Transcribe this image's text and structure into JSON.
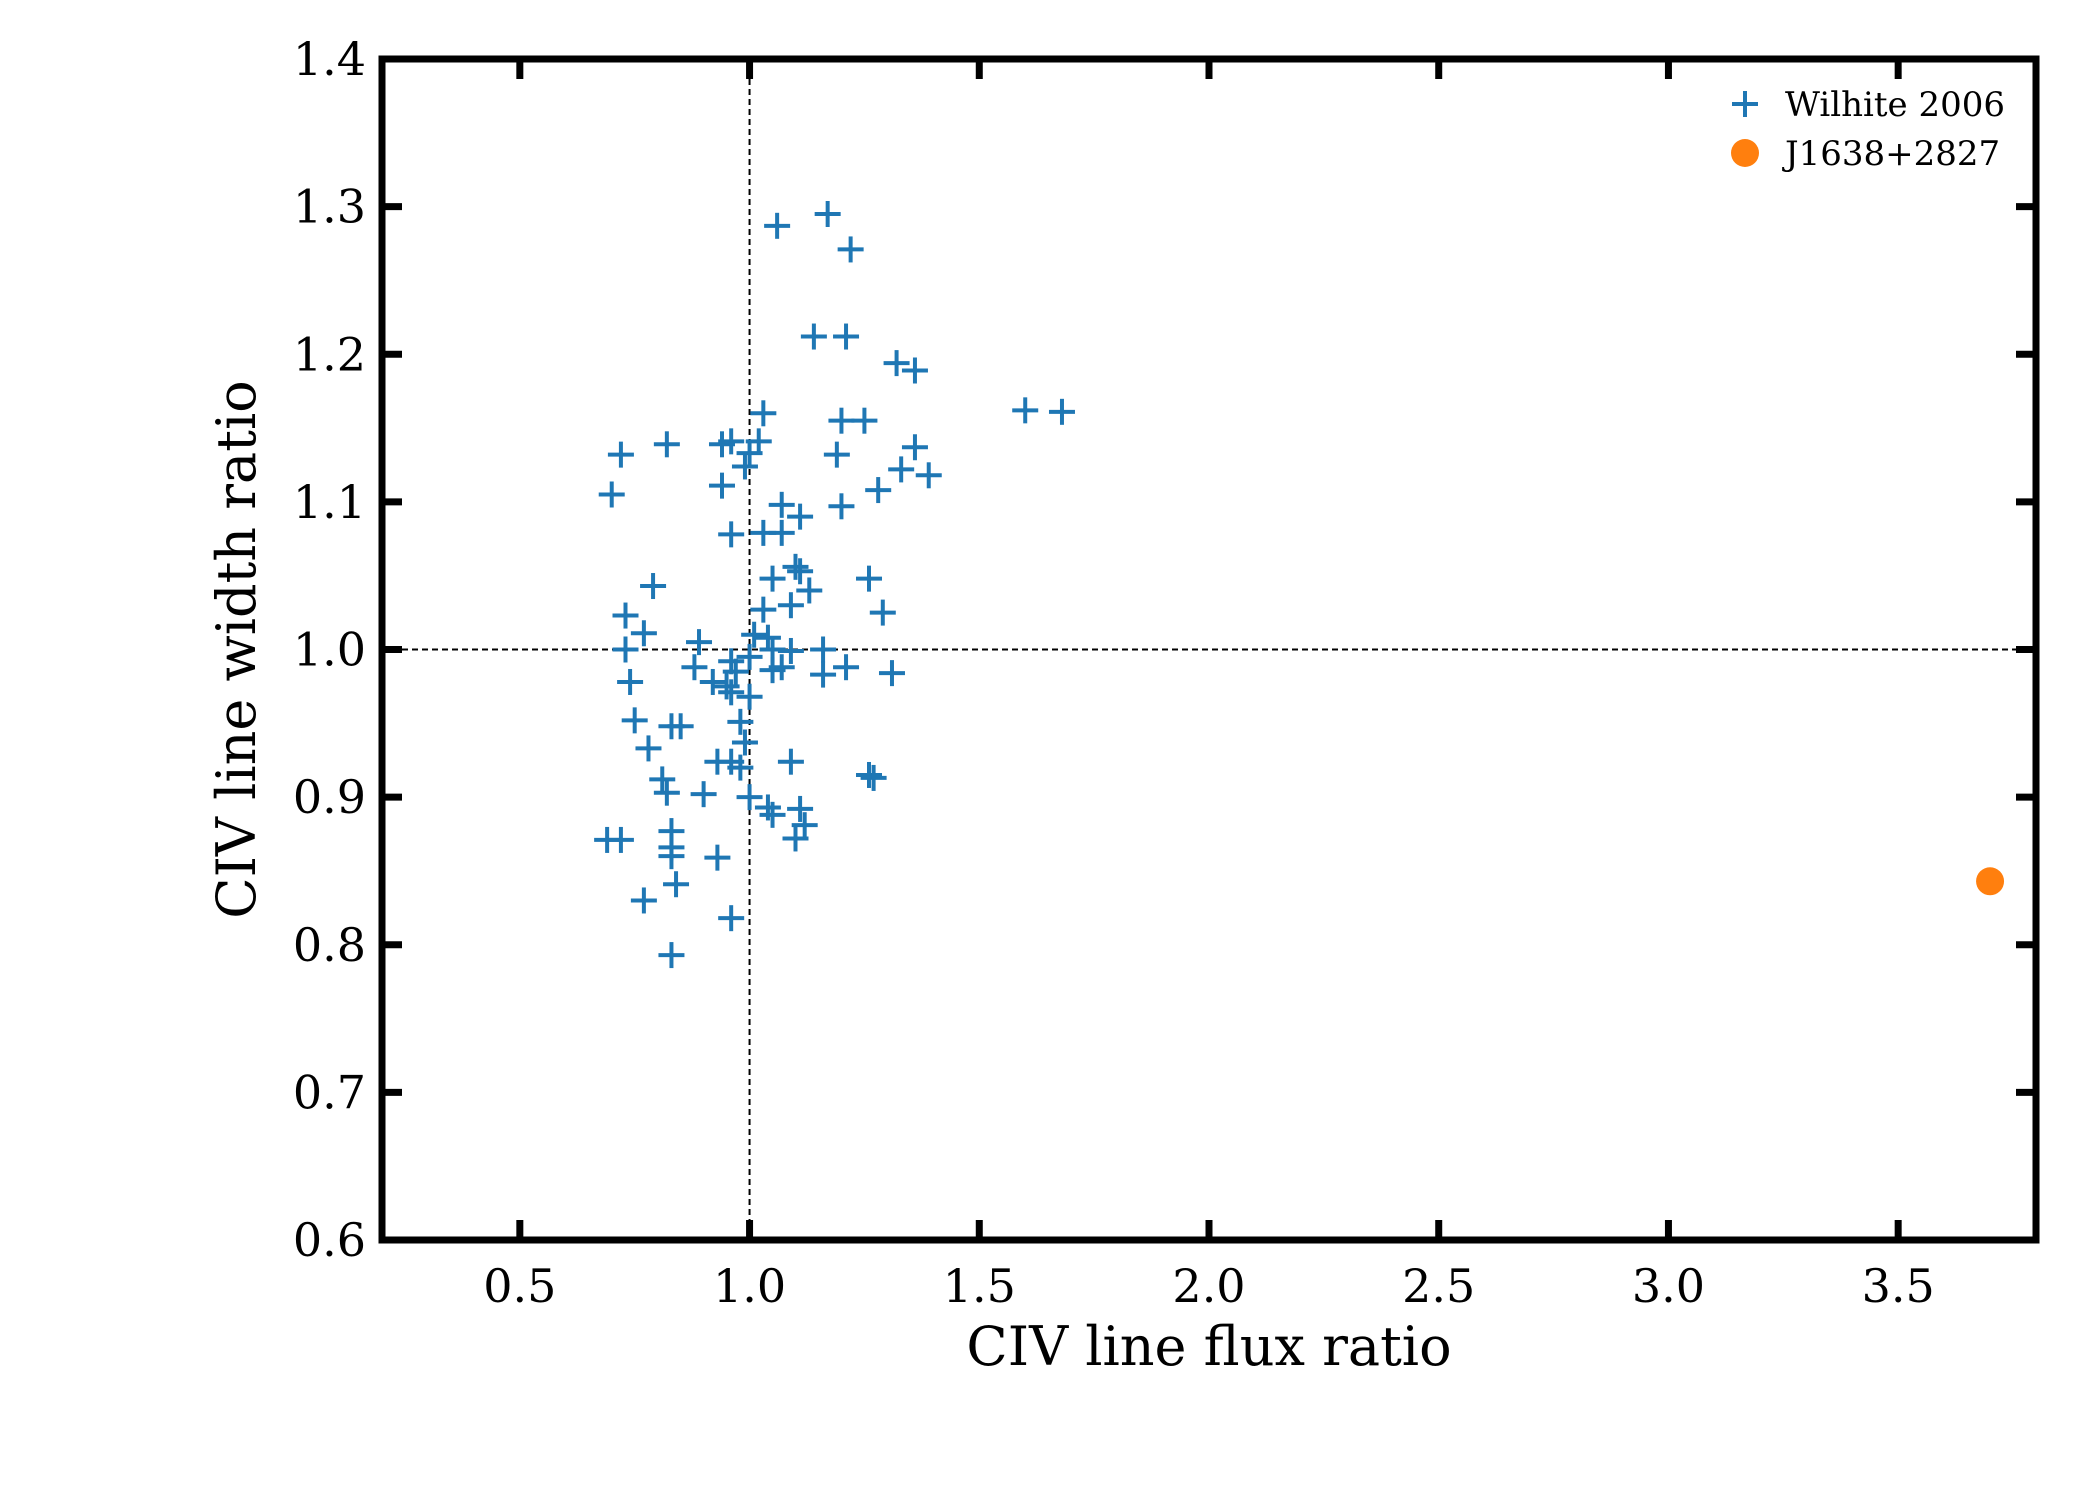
{
  "chart_data": {
    "type": "scatter",
    "xlabel": "CIV line flux  ratio",
    "ylabel": "CIV line width ratio",
    "xlim": [
      0.2,
      3.8
    ],
    "ylim": [
      0.6,
      1.4
    ],
    "xticks": [
      0.5,
      1.0,
      1.5,
      2.0,
      2.5,
      3.0,
      3.5
    ],
    "yticks": [
      0.6,
      0.7,
      0.8,
      0.9,
      1.0,
      1.1,
      1.2,
      1.3,
      1.4
    ],
    "xtick_labels": [
      "0.5",
      "1.0",
      "1.5",
      "2.0",
      "2.5",
      "3.0",
      "3.5"
    ],
    "ytick_labels": [
      "0.6",
      "0.7",
      "0.8",
      "0.9",
      "1.0",
      "1.1",
      "1.2",
      "1.3",
      "1.4"
    ],
    "reference_lines": {
      "x": 1.0,
      "y": 1.0
    },
    "grid": false,
    "legend_position": "top-right",
    "series": [
      {
        "name": "Wilhite 2006",
        "marker": "plus",
        "color": "#1f77b4",
        "points": [
          [
            1.17,
            1.295
          ],
          [
            1.06,
            1.287
          ],
          [
            1.22,
            1.271
          ],
          [
            1.14,
            1.212
          ],
          [
            1.21,
            1.212
          ],
          [
            1.32,
            1.194
          ],
          [
            1.36,
            1.189
          ],
          [
            1.6,
            1.162
          ],
          [
            1.68,
            1.161
          ],
          [
            1.03,
            1.16
          ],
          [
            1.2,
            1.155
          ],
          [
            1.25,
            1.155
          ],
          [
            0.72,
            1.132
          ],
          [
            0.82,
            1.139
          ],
          [
            0.94,
            1.139
          ],
          [
            0.96,
            1.141
          ],
          [
            1.02,
            1.141
          ],
          [
            1.0,
            1.133
          ],
          [
            1.36,
            1.137
          ],
          [
            1.19,
            1.132
          ],
          [
            0.99,
            1.124
          ],
          [
            1.33,
            1.122
          ],
          [
            1.39,
            1.118
          ],
          [
            0.94,
            1.111
          ],
          [
            0.7,
            1.105
          ],
          [
            1.28,
            1.108
          ],
          [
            1.07,
            1.098
          ],
          [
            1.2,
            1.097
          ],
          [
            1.11,
            1.09
          ],
          [
            0.96,
            1.078
          ],
          [
            1.03,
            1.079
          ],
          [
            1.07,
            1.079
          ],
          [
            1.1,
            1.056
          ],
          [
            1.11,
            1.053
          ],
          [
            1.05,
            1.048
          ],
          [
            1.26,
            1.048
          ],
          [
            1.13,
            1.04
          ],
          [
            0.79,
            1.043
          ],
          [
            1.09,
            1.03
          ],
          [
            1.03,
            1.027
          ],
          [
            1.29,
            1.025
          ],
          [
            0.73,
            1.023
          ],
          [
            0.77,
            1.011
          ],
          [
            1.01,
            1.01
          ],
          [
            1.04,
            1.008
          ],
          [
            0.89,
            1.005
          ],
          [
            0.73,
            1.0
          ],
          [
            1.05,
            1.0
          ],
          [
            1.09,
            0.999
          ],
          [
            1.16,
            1.0
          ],
          [
            1.0,
            0.995
          ],
          [
            0.96,
            0.992
          ],
          [
            0.88,
            0.988
          ],
          [
            1.07,
            0.988
          ],
          [
            1.21,
            0.988
          ],
          [
            0.97,
            0.985
          ],
          [
            1.05,
            0.986
          ],
          [
            1.16,
            0.983
          ],
          [
            1.31,
            0.984
          ],
          [
            0.74,
            0.978
          ],
          [
            0.92,
            0.978
          ],
          [
            0.95,
            0.975
          ],
          [
            0.96,
            0.971
          ],
          [
            1.0,
            0.968
          ],
          [
            0.98,
            0.951
          ],
          [
            0.75,
            0.952
          ],
          [
            0.83,
            0.948
          ],
          [
            0.85,
            0.948
          ],
          [
            0.99,
            0.937
          ],
          [
            0.78,
            0.933
          ],
          [
            0.93,
            0.924
          ],
          [
            0.96,
            0.924
          ],
          [
            1.09,
            0.924
          ],
          [
            0.98,
            0.92
          ],
          [
            1.26,
            0.915
          ],
          [
            1.27,
            0.913
          ],
          [
            0.81,
            0.912
          ],
          [
            0.82,
            0.903
          ],
          [
            0.9,
            0.902
          ],
          [
            1.0,
            0.9
          ],
          [
            1.04,
            0.893
          ],
          [
            1.05,
            0.888
          ],
          [
            1.11,
            0.892
          ],
          [
            1.12,
            0.881
          ],
          [
            0.83,
            0.877
          ],
          [
            1.1,
            0.872
          ],
          [
            0.69,
            0.871
          ],
          [
            0.72,
            0.871
          ],
          [
            0.83,
            0.866
          ],
          [
            0.83,
            0.86
          ],
          [
            0.93,
            0.859
          ],
          [
            0.84,
            0.841
          ],
          [
            0.77,
            0.83
          ],
          [
            0.96,
            0.818
          ],
          [
            0.83,
            0.793
          ]
        ]
      },
      {
        "name": "J1638+2827",
        "marker": "circle",
        "color": "#ff7f0e",
        "points": [
          [
            3.7,
            0.843
          ]
        ]
      }
    ]
  }
}
